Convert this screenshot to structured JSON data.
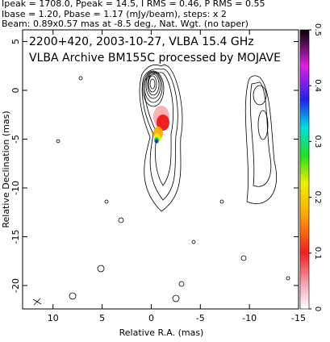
{
  "chart_data": {
    "type": "contour",
    "header": [
      "Ipeak = 1708.0, Ppeak = 14.5, I RMS = 0.46, P RMS = 0.55",
      "Ibase = 1.20, Pbase = 1.17 (mJy/beam), steps: x 2",
      "Beam: 0.89x0.57 mas at -8.5 deg., Nat. Wgt. (no taper)"
    ],
    "title": "2200+420, 2003-10-27, VLBA 15.4 GHz",
    "subtitle": "VLBA Archive BM155C processed by MOJAVE",
    "x_label": "Relative R.A. (mas)",
    "y_label": "Relative Declination (mas)",
    "xlim": [
      13.1,
      -15
    ],
    "xticks": [
      10,
      5,
      0,
      -5,
      -10,
      -15
    ],
    "ylim": [
      -22.4,
      6.2
    ],
    "yticks": [
      5,
      0,
      -5,
      -10,
      -15,
      -20
    ],
    "colorbar_lim": [
      0,
      0.5
    ],
    "colorbar_ticks": [
      0,
      0.1,
      0.2,
      0.3,
      0.4,
      0.5
    ]
  }
}
